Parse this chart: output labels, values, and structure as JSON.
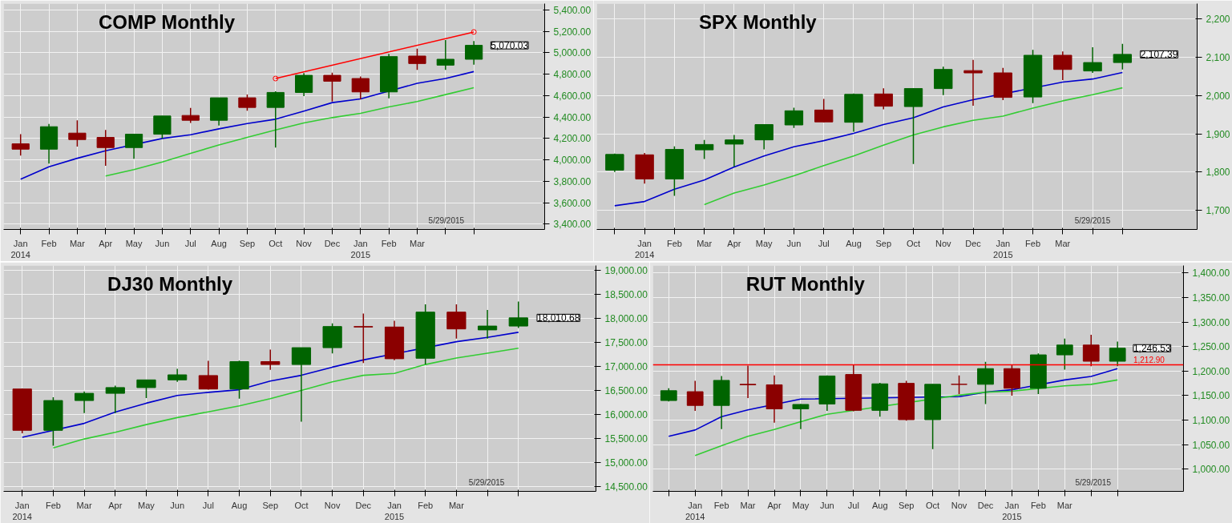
{
  "chart_data": [
    {
      "type": "candlestick",
      "title": "COMP Monthly",
      "categories": [
        "Jan\n2014",
        "Feb",
        "Mar",
        "Apr",
        "May",
        "Jun",
        "Jul",
        "Aug",
        "Sep",
        "Oct",
        "Nov",
        "Dec",
        "Jan\n2015",
        "Feb",
        "Mar",
        null,
        null
      ],
      "ohlc": [
        [
          4150,
          4240,
          4040,
          4100
        ],
        [
          4100,
          4335,
          3965,
          4310
        ],
        [
          4250,
          4370,
          4125,
          4190
        ],
        [
          4210,
          4280,
          3945,
          4115
        ],
        [
          4115,
          4245,
          4010,
          4240
        ],
        [
          4240,
          4410,
          4200,
          4410
        ],
        [
          4415,
          4485,
          4345,
          4370
        ],
        [
          4370,
          4580,
          4320,
          4580
        ],
        [
          4580,
          4610,
          4460,
          4490
        ],
        [
          4490,
          4640,
          4115,
          4630
        ],
        [
          4630,
          4810,
          4595,
          4790
        ],
        [
          4790,
          4815,
          4545,
          4735
        ],
        [
          4760,
          4780,
          4565,
          4635
        ],
        [
          4635,
          4990,
          4575,
          4965
        ],
        [
          4970,
          5040,
          4840,
          4900
        ],
        [
          4885,
          5120,
          4840,
          4940
        ],
        [
          4940,
          5110,
          4890,
          5070.03
        ]
      ],
      "colors": [
        "#8b0000",
        "#006400",
        "#8b0000",
        "#8b0000",
        "#006400",
        "#006400",
        "#8b0000",
        "#006400",
        "#8b0000",
        "#006400",
        "#006400",
        "#8b0000",
        "#8b0000",
        "#006400",
        "#8b0000",
        "#006400",
        "#006400"
      ],
      "series": [
        {
          "type": "line",
          "color": "#0000cc",
          "values": [
            3820,
            3935,
            4015,
            4085,
            null,
            4200,
            4235,
            4290,
            4340,
            4380,
            4455,
            4535,
            4570,
            null,
            4715,
            4760,
            4825
          ]
        },
        {
          "type": "line",
          "color": "#33cc33",
          "values": [
            null,
            null,
            null,
            3850,
            3910,
            3980,
            4060,
            4140,
            4210,
            4280,
            4345,
            4395,
            4435,
            4495,
            4545,
            4610,
            4675
          ]
        },
        {
          "type": "line",
          "color": "#ff0000",
          "marker": "circle",
          "values": [
            null,
            null,
            null,
            null,
            null,
            null,
            null,
            null,
            null,
            4760,
            null,
            null,
            null,
            null,
            null,
            null,
            5195
          ]
        }
      ],
      "ylim": [
        3350,
        5460
      ],
      "yticks": [
        {
          "value": 3400,
          "label": "3,400.00"
        },
        {
          "value": 3600,
          "label": "3,600.00"
        },
        {
          "value": 3800,
          "label": "3,800.00"
        },
        {
          "value": 4000,
          "label": "4,000.00"
        },
        {
          "value": 4200,
          "label": "4,200.00"
        },
        {
          "value": 4400,
          "label": "4,400.00"
        },
        {
          "value": 4600,
          "label": "4,600.00"
        },
        {
          "value": 4800,
          "label": "4,800.00"
        },
        {
          "value": 5000,
          "label": "5,000.00"
        },
        {
          "value": 5200,
          "label": "5,200.00"
        },
        {
          "value": 5400,
          "label": "5,400.00"
        }
      ],
      "grid": true,
      "annotations": [
        "5/29/2015",
        "5,070.03"
      ]
    },
    {
      "type": "candlestick",
      "title": "SPX Monthly",
      "categories": [
        null,
        "Jan\n2014",
        "Feb",
        "Mar",
        "Apr",
        "May",
        "Jun",
        "Jul",
        "Aug",
        "Sep",
        "Oct",
        "Nov",
        "Dec",
        "Jan\n2015",
        "Feb",
        "Mar",
        null,
        null
      ],
      "ohlc": [
        [
          1805,
          1848,
          1800,
          1846
        ],
        [
          1845,
          1850,
          1770,
          1782
        ],
        [
          1782,
          1867,
          1738,
          1859
        ],
        [
          1858,
          1884,
          1834,
          1872
        ],
        [
          1873,
          1897,
          1814,
          1884
        ],
        [
          1884,
          1924,
          1859,
          1924
        ],
        [
          1923,
          1968,
          1915,
          1960
        ],
        [
          1962,
          1991,
          1930,
          1931
        ],
        [
          1930,
          2005,
          1905,
          2003
        ],
        [
          2004,
          2019,
          1964,
          1972
        ],
        [
          1971,
          2018,
          1821,
          2018
        ],
        [
          2018,
          2075,
          2001,
          2068
        ],
        [
          2065,
          2093,
          1973,
          2059
        ],
        [
          2059,
          2072,
          1988,
          1995
        ],
        [
          1996,
          2119,
          1980,
          2105
        ],
        [
          2105,
          2115,
          2040,
          2068
        ],
        [
          2064,
          2126,
          2059,
          2086
        ],
        [
          2086,
          2135,
          2068,
          2107.39
        ]
      ],
      "colors": [
        "#006400",
        "#8b0000",
        "#006400",
        "#006400",
        "#006400",
        "#006400",
        "#006400",
        "#8b0000",
        "#006400",
        "#8b0000",
        "#006400",
        "#006400",
        "#8b0000",
        "#8b0000",
        "#006400",
        "#8b0000",
        "#006400",
        "#006400"
      ],
      "series": [
        {
          "type": "line",
          "color": "#0000cc",
          "values": [
            1712,
            1723,
            1755,
            1779,
            1813,
            1842,
            1866,
            1882,
            1901,
            1924,
            1942,
            1970,
            1989,
            null,
            null,
            2035,
            2043,
            2060
          ]
        },
        {
          "type": "line",
          "color": "#33cc33",
          "values": [
            null,
            null,
            null,
            1715,
            1745,
            1766,
            1790,
            1817,
            1842,
            1870,
            1897,
            1918,
            1935,
            1946,
            1967,
            1986,
            2002,
            2020
          ]
        }
      ],
      "ylim": [
        1650,
        2240
      ],
      "yticks": [
        {
          "value": 1700,
          "label": "1,700"
        },
        {
          "value": 1800,
          "label": "1,800"
        },
        {
          "value": 1900,
          "label": "1,900"
        },
        {
          "value": 2000,
          "label": "2,000"
        },
        {
          "value": 2100,
          "label": "2,100"
        },
        {
          "value": 2200,
          "label": "2,200"
        }
      ],
      "grid": true,
      "annotations": [
        "5/29/2015",
        "2,107.39"
      ]
    },
    {
      "type": "candlestick",
      "title": "DJ30 Monthly",
      "categories": [
        "Jan\n2014",
        "Feb",
        "Mar",
        "Apr",
        "May",
        "Jun",
        "Jul",
        "Aug",
        "Sep",
        "Oct",
        "Nov",
        "Dec",
        "Jan\n2015",
        "Feb",
        "Mar",
        null,
        null
      ],
      "ohlc": [
        [
          16530,
          16540,
          15610,
          15670
        ],
        [
          15670,
          16360,
          15350,
          16290
        ],
        [
          16290,
          16480,
          16030,
          16440
        ],
        [
          16440,
          16600,
          16030,
          16560
        ],
        [
          16560,
          16720,
          16340,
          16720
        ],
        [
          16720,
          16950,
          16680,
          16825
        ],
        [
          16810,
          17115,
          16515,
          16530
        ],
        [
          16530,
          17120,
          16330,
          17100
        ],
        [
          17100,
          17350,
          16930,
          17040
        ],
        [
          17040,
          17390,
          15850,
          17390
        ],
        [
          17390,
          17895,
          17270,
          17830
        ],
        [
          17830,
          18100,
          17070,
          17820
        ],
        [
          17820,
          17950,
          17130,
          17160
        ],
        [
          17170,
          18290,
          17040,
          18130
        ],
        [
          18130,
          18290,
          17580,
          17780
        ],
        [
          17760,
          18175,
          17580,
          17840
        ],
        [
          17840,
          18350,
          17800,
          18010.68
        ]
      ],
      "colors": [
        "#8b0000",
        "#006400",
        "#006400",
        "#006400",
        "#006400",
        "#006400",
        "#8b0000",
        "#006400",
        "#8b0000",
        "#006400",
        "#006400",
        "#8b0000",
        "#8b0000",
        "#006400",
        "#8b0000",
        "#006400",
        "#006400"
      ],
      "series": [
        {
          "type": "line",
          "color": "#0000cc",
          "values": [
            15525,
            null,
            15815,
            16050,
            16235,
            16395,
            16460,
            16515,
            16695,
            16815,
            16985,
            17135,
            null,
            null,
            17515,
            17605,
            17710
          ]
        },
        {
          "type": "line",
          "color": "#33cc33",
          "values": [
            null,
            15305,
            15490,
            15630,
            15790,
            15935,
            16055,
            16180,
            16330,
            16500,
            16680,
            16815,
            16855,
            17040,
            17175,
            17275,
            17380
          ]
        }
      ],
      "ylim": [
        14400,
        19100
      ],
      "yticks": [
        {
          "value": 14500,
          "label": "14,500.00"
        },
        {
          "value": 15000,
          "label": "15,000.00"
        },
        {
          "value": 15500,
          "label": "15,500.00"
        },
        {
          "value": 16000,
          "label": "16,000.00"
        },
        {
          "value": 16500,
          "label": "16,500.00"
        },
        {
          "value": 17000,
          "label": "17,000.00"
        },
        {
          "value": 17500,
          "label": "17,500.00"
        },
        {
          "value": 18000,
          "label": "18,000.00"
        },
        {
          "value": 18500,
          "label": "18,500.00"
        },
        {
          "value": 19000,
          "label": "19,000.00"
        }
      ],
      "grid": true,
      "annotations": [
        "5/29/2015",
        "18,010.68"
      ]
    },
    {
      "type": "candlestick",
      "title": "RUT Monthly",
      "categories": [
        null,
        "Jan\n2014",
        "Feb",
        "Mar",
        "Apr",
        "May",
        "Jun",
        "Jul",
        "Aug",
        "Sep",
        "Oct",
        "Nov",
        "Dec",
        "Jan\n2015",
        "Feb",
        "Mar",
        null,
        null
      ],
      "ohlc": [
        [
          1140,
          1165,
          1138,
          1160
        ],
        [
          1158,
          1180,
          1119,
          1130
        ],
        [
          1130,
          1190,
          1082,
          1181
        ],
        [
          1173,
          1211,
          1145,
          1172
        ],
        [
          1172,
          1191,
          1095,
          1123
        ],
        [
          1123,
          1133,
          1082,
          1132
        ],
        [
          1133,
          1191,
          1119,
          1190
        ],
        [
          1193,
          1212,
          1118,
          1120
        ],
        [
          1120,
          1176,
          1107,
          1174
        ],
        [
          1175,
          1180,
          1099,
          1101
        ],
        [
          1101,
          1173,
          1041,
          1173
        ],
        [
          1173,
          1191,
          1153,
          1173
        ],
        [
          1173,
          1219,
          1133,
          1205
        ],
        [
          1205,
          1212,
          1150,
          1165
        ],
        [
          1165,
          1236,
          1153,
          1233
        ],
        [
          1233,
          1266,
          1203,
          1253
        ],
        [
          1253,
          1274,
          1210,
          1220
        ],
        [
          1220,
          1260,
          1210,
          1246.53
        ]
      ],
      "colors": [
        "#006400",
        "#8b0000",
        "#006400",
        "#8b0000",
        "#8b0000",
        "#006400",
        "#006400",
        "#8b0000",
        "#006400",
        "#8b0000",
        "#006400",
        "#8b0000",
        "#006400",
        "#8b0000",
        "#006400",
        "#006400",
        "#8b0000",
        "#006400"
      ],
      "series": [
        {
          "type": "line",
          "color": "#0000cc",
          "values": [
            1067,
            1080,
            1107,
            1121,
            null,
            1143,
            null,
            null,
            null,
            null,
            null,
            1148,
            1157,
            1162,
            null,
            1182,
            1189,
            1205
          ]
        },
        {
          "type": "line",
          "color": "#33cc33",
          "values": [
            null,
            1028,
            1048,
            1067,
            1081,
            1097,
            1112,
            null,
            null,
            null,
            null,
            1151,
            1157,
            1159,
            null,
            1170,
            1173,
            1182
          ]
        }
      ],
      "ylim": [
        955,
        1415
      ],
      "yticks": [
        {
          "value": 1000,
          "label": "1,000.00"
        },
        {
          "value": 1050,
          "label": "1,050.00"
        },
        {
          "value": 1100,
          "label": "1,100.00"
        },
        {
          "value": 1150,
          "label": "1,150.00"
        },
        {
          "value": 1200,
          "label": "1,200.00"
        },
        {
          "value": 1250,
          "label": "1,250.00"
        },
        {
          "value": 1300,
          "label": "1,300.00"
        },
        {
          "value": 1350,
          "label": "1,350.00"
        },
        {
          "value": 1400,
          "label": "1,400.00"
        }
      ],
      "grid": true,
      "ref_lines": [
        {
          "axis": "y",
          "value": 1212.9,
          "label": "1,212.90",
          "color": "#ff0000"
        }
      ],
      "annotations": [
        "5/29/2015",
        "1,246.53"
      ]
    }
  ]
}
